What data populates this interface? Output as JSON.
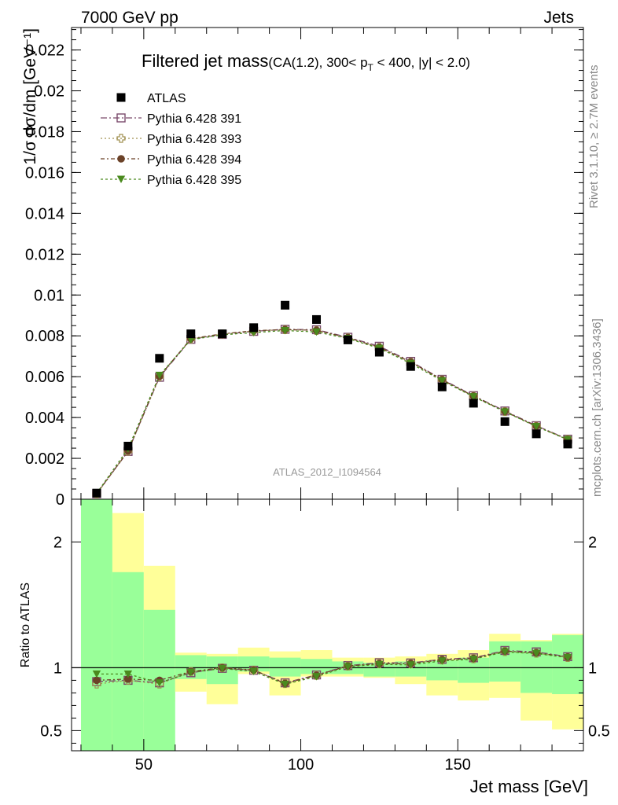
{
  "header": {
    "left": "7000 GeV pp",
    "right": "Jets"
  },
  "side_text": {
    "rivet": "Rivet 3.1.10, ≥ 2.7M events",
    "mcplots": "mcplots.cern.ch [arXiv:1306.3436]"
  },
  "watermark": "ATLAS_2012_I1094564",
  "chart_data": {
    "type": "scatter",
    "title": {
      "main": "Filtered jet mass",
      "cuts_pre": "(CA(1.2), 300< p",
      "cuts_sub": "T",
      "cuts_post": " < 400, |y| < 2.0)"
    },
    "xlabel": "Jet mass [GeV]",
    "ylabel_main": "1/σ dσ/dm [GeV⁻¹]",
    "ylabel_ratio": "Ratio to ATLAS",
    "xlim": [
      27,
      190
    ],
    "ylim_main": [
      0,
      0.0231
    ],
    "ylim_ratio": [
      0.34,
      2.34
    ],
    "x_ticks": [
      50,
      100,
      150
    ],
    "x_tick_labels": [
      "50",
      "100",
      "150"
    ],
    "y_ticks_main": [
      0,
      0.002,
      0.004,
      0.006,
      0.008,
      0.01,
      0.012,
      0.014,
      0.016,
      0.018,
      0.02,
      0.022
    ],
    "y_tick_labels_main": [
      "0",
      "0.002",
      "0.004",
      "0.006",
      "0.008",
      "0.01",
      "0.012",
      "0.014",
      "0.016",
      "0.018",
      "0.02",
      "0.022"
    ],
    "y_ticks_ratio": [
      0.5,
      1,
      2
    ],
    "y_tick_labels_ratio": [
      "0.5",
      "1",
      "2"
    ],
    "bin_edges": [
      30,
      40,
      50,
      60,
      70,
      80,
      90,
      100,
      110,
      120,
      130,
      140,
      150,
      160,
      170,
      180,
      190
    ],
    "x": [
      35,
      45,
      55,
      65,
      75,
      85,
      95,
      105,
      115,
      125,
      135,
      145,
      155,
      165,
      175,
      185
    ],
    "data": {
      "name": "ATLAS",
      "values": [
        0.0003,
        0.0026,
        0.0069,
        0.0081,
        0.0081,
        0.0084,
        0.0095,
        0.0088,
        0.0078,
        0.0072,
        0.0065,
        0.0055,
        0.0047,
        0.0038,
        0.0032,
        0.0027
      ]
    },
    "band_stat_lo": [
      0.34,
      0.34,
      0.34,
      0.91,
      0.87,
      0.97,
      0.93,
      0.95,
      0.95,
      0.93,
      0.93,
      0.9,
      0.88,
      0.89,
      0.8,
      0.79
    ],
    "band_stat_hi": [
      2.34,
      1.76,
      1.46,
      1.1,
      1.09,
      1.09,
      1.08,
      1.07,
      1.05,
      1.04,
      1.05,
      1.06,
      1.08,
      1.21,
      1.21,
      1.26
    ],
    "band_tot_lo": [
      0.34,
      0.34,
      0.73,
      0.81,
      0.71,
      0.95,
      0.78,
      0.93,
      0.93,
      0.92,
      0.87,
      0.78,
      0.74,
      0.76,
      0.58,
      0.51
    ],
    "band_tot_hi": [
      2.34,
      2.23,
      1.81,
      1.12,
      1.11,
      1.16,
      1.13,
      1.14,
      1.08,
      1.08,
      1.09,
      1.11,
      1.14,
      1.27,
      1.22,
      1.27
    ],
    "series": [
      {
        "name": "Pythia 6.428 391",
        "color": "#7a4a6b",
        "marker": "open-square",
        "dash": "8,3,2,3",
        "values": [
          0.00027,
          0.00234,
          0.00597,
          0.00783,
          0.00807,
          0.00822,
          0.00832,
          0.0083,
          0.00793,
          0.00749,
          0.00675,
          0.00587,
          0.00507,
          0.00432,
          0.0036,
          0.00294
        ],
        "ratio": [
          0.89,
          0.9,
          0.88,
          0.96,
          0.995,
          0.98,
          0.88,
          0.943,
          1.017,
          1.04,
          1.038,
          1.067,
          1.079,
          1.137,
          1.126,
          1.088
        ]
      },
      {
        "name": "Pythia 6.428 393",
        "color": "#a09050",
        "marker": "open-cross",
        "dash": "2,3",
        "values": [
          0.00026,
          0.00235,
          0.006,
          0.00785,
          0.00809,
          0.00824,
          0.0083,
          0.00826,
          0.0079,
          0.00743,
          0.00671,
          0.00584,
          0.00504,
          0.00429,
          0.00357,
          0.00292
        ],
        "ratio": [
          0.87,
          0.9,
          0.87,
          0.97,
          0.999,
          0.981,
          0.874,
          0.939,
          1.013,
          1.032,
          1.032,
          1.062,
          1.072,
          1.129,
          1.116,
          1.081
        ]
      },
      {
        "name": "Pythia 6.428 394",
        "color": "#6b4228",
        "marker": "filled-circle",
        "dash": "5,3,2,3",
        "values": [
          0.00027,
          0.00236,
          0.00602,
          0.00786,
          0.0081,
          0.00825,
          0.00831,
          0.00827,
          0.00791,
          0.00744,
          0.00672,
          0.00585,
          0.00505,
          0.0043,
          0.00358,
          0.00293
        ],
        "ratio": [
          0.9,
          0.91,
          0.9,
          0.97,
          1.0,
          0.982,
          0.875,
          0.94,
          1.014,
          1.033,
          1.034,
          1.064,
          1.074,
          1.132,
          1.119,
          1.085
        ]
      },
      {
        "name": "Pythia 6.428 395",
        "color": "#4a8a1e",
        "marker": "filled-triangle-down",
        "dash": "3,3",
        "values": [
          0.00029,
          0.00247,
          0.00607,
          0.00781,
          0.00805,
          0.00816,
          0.00826,
          0.00819,
          0.00787,
          0.00739,
          0.00665,
          0.0058,
          0.00502,
          0.00428,
          0.00356,
          0.00292
        ],
        "ratio": [
          0.95,
          0.95,
          0.88,
          0.964,
          0.994,
          0.971,
          0.869,
          0.93,
          1.009,
          1.026,
          1.023,
          1.054,
          1.068,
          1.126,
          1.113,
          1.081
        ]
      }
    ],
    "band_stat_color": "#99ff99",
    "band_tot_color": "#ffff99",
    "legend_position": "top-left",
    "grid": false
  }
}
